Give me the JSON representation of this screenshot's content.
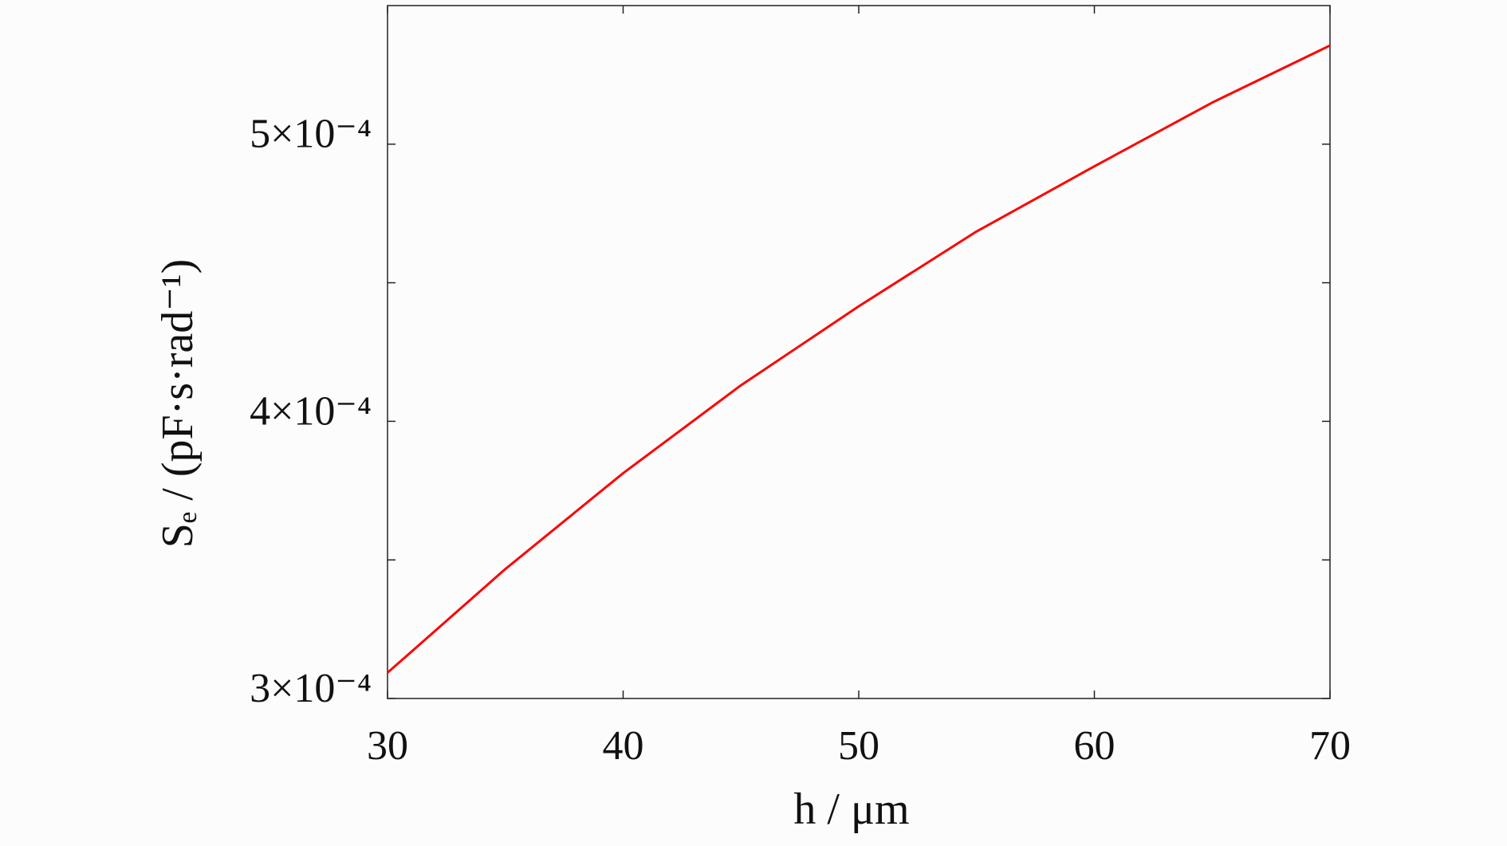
{
  "chart_data": {
    "type": "line",
    "xlabel": "h / μm",
    "ylabel": "Sₑ / (pF·s·rad⁻¹)",
    "x": [
      30,
      35,
      40,
      45,
      50,
      55,
      60,
      65,
      70
    ],
    "series": [
      {
        "name": "Se",
        "color": "#ff0000",
        "values": [
          0.0003093,
          0.0003467,
          0.0003813,
          0.000413,
          0.0004415,
          0.0004685,
          0.000492,
          0.000515,
          0.0005356
        ]
      }
    ],
    "xlim": [
      30,
      70
    ],
    "xticks": [
      30,
      40,
      50,
      60,
      70
    ],
    "ylim": [
      0.0003,
      0.00055
    ],
    "yticks": [
      {
        "value": 0.0003,
        "label": "3×10⁻⁴"
      },
      {
        "value": 0.0004,
        "label": "4×10⁻⁴"
      },
      {
        "value": 0.0005,
        "label": "5×10⁻⁴"
      }
    ],
    "yminor_ticks": [
      0.00035,
      0.00045
    ],
    "grid": false
  }
}
